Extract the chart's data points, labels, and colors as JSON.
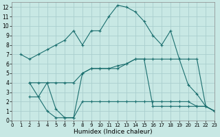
{
  "xlabel": "Humidex (Indice chaleur)",
  "bg_color": "#c8e8e4",
  "grid_color": "#aacece",
  "line_color": "#1a6e6e",
  "curve1_x": [
    1,
    2,
    3,
    4,
    5,
    6,
    7,
    8,
    9,
    10,
    11,
    12,
    13,
    14,
    15,
    16,
    17,
    18,
    19,
    20,
    21,
    22,
    23
  ],
  "curve1_y": [
    7.0,
    6.5,
    7.0,
    7.5,
    8.0,
    8.5,
    9.5,
    8.0,
    9.5,
    9.5,
    11.0,
    12.2,
    12.0,
    11.5,
    10.5,
    9.0,
    8.0,
    9.5,
    6.5,
    3.8,
    2.8,
    1.5,
    1.0
  ],
  "curve2_x": [
    2,
    3,
    4,
    5,
    6,
    7,
    8,
    9,
    10,
    11,
    12,
    13,
    14,
    15,
    16,
    17,
    18,
    19,
    20,
    21,
    22,
    23
  ],
  "curve2_y": [
    4.0,
    4.0,
    4.0,
    4.0,
    4.0,
    4.0,
    5.0,
    5.5,
    5.5,
    5.5,
    5.5,
    6.0,
    6.5,
    6.5,
    6.5,
    6.5,
    6.5,
    6.5,
    6.5,
    6.5,
    1.5,
    1.0
  ],
  "curve3_x": [
    2,
    3,
    4,
    5,
    6,
    7,
    8,
    9,
    10,
    11,
    12,
    13,
    14,
    15,
    16,
    17,
    18,
    19,
    20,
    21,
    22,
    23
  ],
  "curve3_y": [
    2.5,
    2.5,
    1.0,
    0.3,
    0.3,
    0.3,
    2.0,
    2.0,
    2.0,
    2.0,
    2.0,
    2.0,
    2.0,
    2.0,
    2.0,
    2.0,
    2.0,
    2.0,
    2.0,
    1.5,
    1.5,
    1.0
  ],
  "curve4_x": [
    2,
    3,
    4,
    5,
    6,
    7,
    8,
    9,
    10,
    11,
    12,
    13,
    14,
    15,
    16,
    17,
    18,
    19,
    20,
    21,
    22,
    23
  ],
  "curve4_y": [
    4.0,
    2.5,
    4.0,
    1.2,
    0.3,
    0.3,
    5.0,
    5.5,
    5.5,
    5.5,
    5.8,
    6.0,
    6.5,
    6.5,
    1.5,
    1.5,
    1.5,
    1.5,
    1.5,
    1.5,
    1.5,
    1.0
  ],
  "xlim": [
    0,
    23
  ],
  "ylim": [
    0,
    12.5
  ],
  "xticks": [
    0,
    1,
    2,
    3,
    4,
    5,
    6,
    7,
    8,
    9,
    10,
    11,
    12,
    13,
    14,
    15,
    16,
    17,
    18,
    19,
    20,
    21,
    22,
    23
  ],
  "yticks": [
    0,
    1,
    2,
    3,
    4,
    5,
    6,
    7,
    8,
    9,
    10,
    11,
    12
  ]
}
